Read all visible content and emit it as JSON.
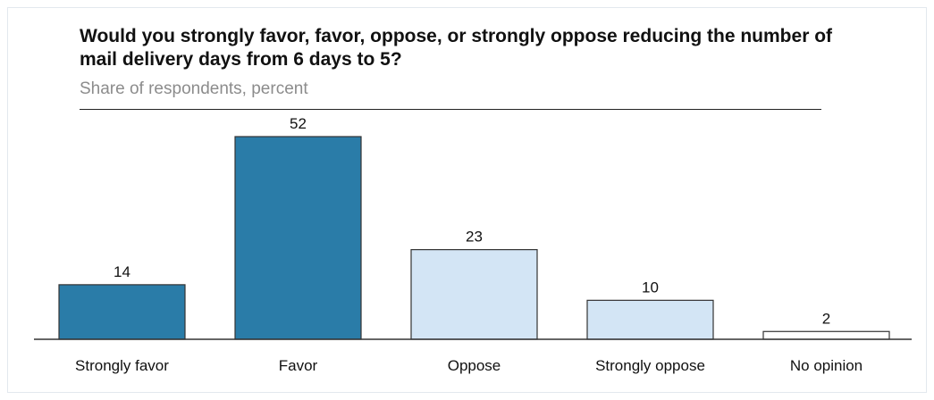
{
  "chart_data": {
    "type": "bar",
    "title": "Would you strongly favor, favor, oppose, or strongly oppose reducing the number of mail delivery days from 6 days to 5?",
    "subtitle": "Share of respondents, percent",
    "categories": [
      "Strongly favor",
      "Favor",
      "Oppose",
      "Strongly oppose",
      "No opinion"
    ],
    "values": [
      14,
      52,
      23,
      10,
      2
    ],
    "bar_colors": [
      "#2a7ca8",
      "#2a7ca8",
      "#d3e5f5",
      "#d3e5f5",
      "#ffffff"
    ],
    "bar_outline": "#333333",
    "ylim": [
      0,
      52
    ],
    "grid": false,
    "legend": "none"
  }
}
